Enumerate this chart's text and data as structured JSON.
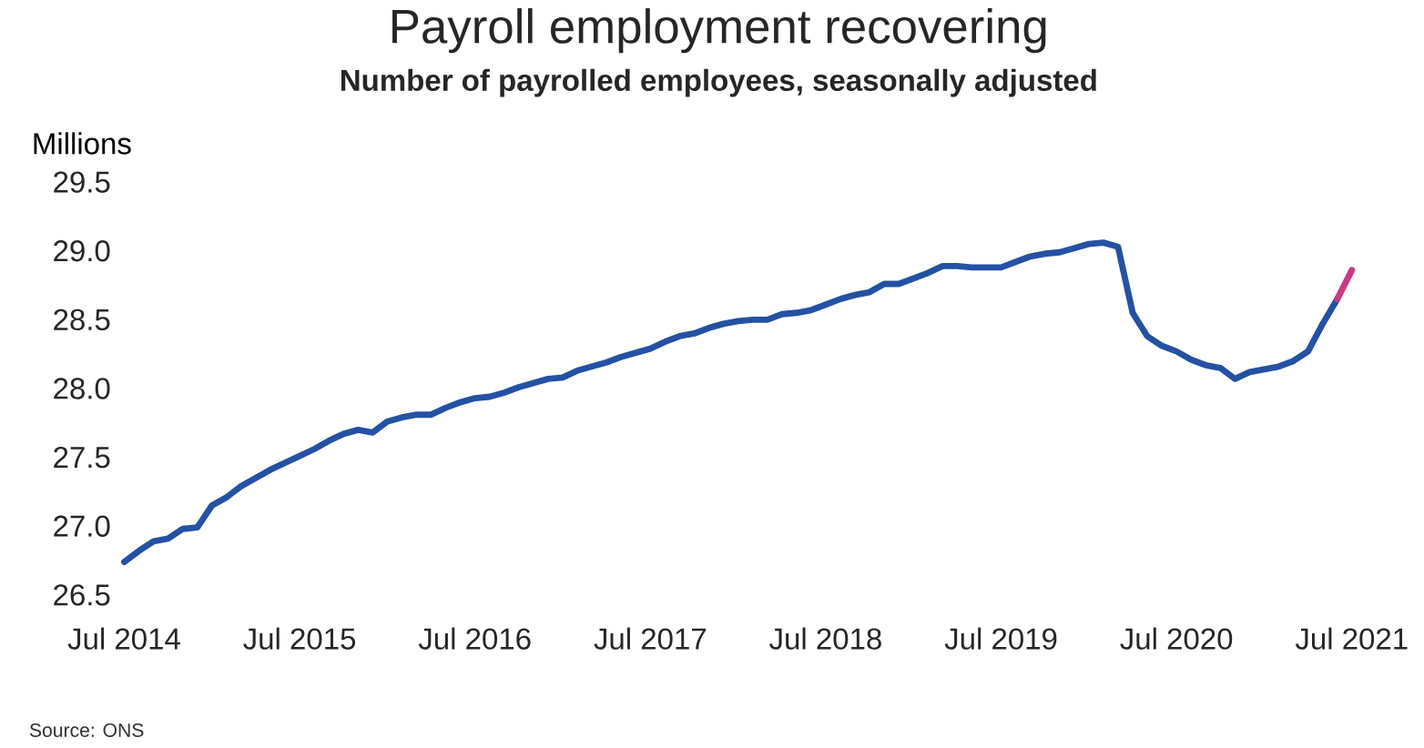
{
  "chart_data": {
    "type": "line",
    "title": "Payroll employment recovering",
    "subtitle": "Number of payrolled employees, seasonally adjusted",
    "ylabel": "Millions",
    "annotations": [
      "Source: ONS"
    ],
    "x": [
      "2014-07",
      "2014-08",
      "2014-09",
      "2014-10",
      "2014-11",
      "2014-12",
      "2015-01",
      "2015-02",
      "2015-03",
      "2015-04",
      "2015-05",
      "2015-06",
      "2015-07",
      "2015-08",
      "2015-09",
      "2015-10",
      "2015-11",
      "2015-12",
      "2016-01",
      "2016-02",
      "2016-03",
      "2016-04",
      "2016-05",
      "2016-06",
      "2016-07",
      "2016-08",
      "2016-09",
      "2016-10",
      "2016-11",
      "2016-12",
      "2017-01",
      "2017-02",
      "2017-03",
      "2017-04",
      "2017-05",
      "2017-06",
      "2017-07",
      "2017-08",
      "2017-09",
      "2017-10",
      "2017-11",
      "2017-12",
      "2018-01",
      "2018-02",
      "2018-03",
      "2018-04",
      "2018-05",
      "2018-06",
      "2018-07",
      "2018-08",
      "2018-09",
      "2018-10",
      "2018-11",
      "2018-12",
      "2019-01",
      "2019-02",
      "2019-03",
      "2019-04",
      "2019-05",
      "2019-06",
      "2019-07",
      "2019-08",
      "2019-09",
      "2019-10",
      "2019-11",
      "2019-12",
      "2020-01",
      "2020-02",
      "2020-03",
      "2020-04",
      "2020-05",
      "2020-06",
      "2020-07",
      "2020-08",
      "2020-09",
      "2020-10",
      "2020-11",
      "2020-12",
      "2021-01",
      "2021-02",
      "2021-03",
      "2021-04",
      "2021-05",
      "2021-06"
    ],
    "series": [
      {
        "color": "#2451a3",
        "values": [
          26.74,
          26.82,
          26.89,
          26.91,
          26.98,
          26.99,
          27.15,
          27.21,
          27.29,
          27.35,
          27.41,
          27.46,
          27.51,
          27.56,
          27.62,
          27.67,
          27.7,
          27.68,
          27.76,
          27.79,
          27.81,
          27.81,
          27.86,
          27.9,
          27.93,
          27.94,
          27.97,
          28.01,
          28.04,
          28.07,
          28.08,
          28.13,
          28.16,
          28.19,
          28.23,
          28.26,
          28.29,
          28.34,
          28.38,
          28.4,
          28.44,
          28.47,
          28.49,
          28.5,
          28.5,
          28.54,
          28.55,
          28.57,
          28.61,
          28.65,
          28.68,
          28.7,
          28.76,
          28.76,
          28.8,
          28.84,
          28.89,
          28.89,
          28.88,
          28.88,
          28.88,
          28.92,
          28.96,
          28.98,
          28.99,
          29.02,
          29.05,
          29.06,
          29.03,
          28.55,
          28.38,
          28.31,
          28.27,
          28.21,
          28.17,
          28.15,
          28.07,
          28.12,
          28.14,
          28.16,
          28.2,
          28.27,
          28.47,
          28.65
        ]
      },
      {
        "color": "#c83a82",
        "x": [
          "2021-06",
          "2021-07"
        ],
        "values": [
          28.65,
          28.86
        ]
      }
    ],
    "xlim": [
      "2014-07",
      "2021-07"
    ],
    "xticks": [
      {
        "value": "2014-07",
        "label": "Jul 2014"
      },
      {
        "value": "2015-07",
        "label": "Jul 2015"
      },
      {
        "value": "2016-07",
        "label": "Jul 2016"
      },
      {
        "value": "2017-07",
        "label": "Jul 2017"
      },
      {
        "value": "2018-07",
        "label": "Jul 2018"
      },
      {
        "value": "2019-07",
        "label": "Jul 2019"
      },
      {
        "value": "2020-07",
        "label": "Jul 2020"
      },
      {
        "value": "2021-07",
        "label": "Jul 2021"
      }
    ],
    "ylim": [
      26.5,
      29.5
    ],
    "yticks": [
      26.5,
      {
        "value": 27,
        "label": "27.0"
      },
      27.5,
      {
        "value": 28,
        "label": "28.0"
      },
      28.5,
      {
        "value": 29,
        "label": "29.0"
      },
      29.5
    ],
    "grid": false
  }
}
